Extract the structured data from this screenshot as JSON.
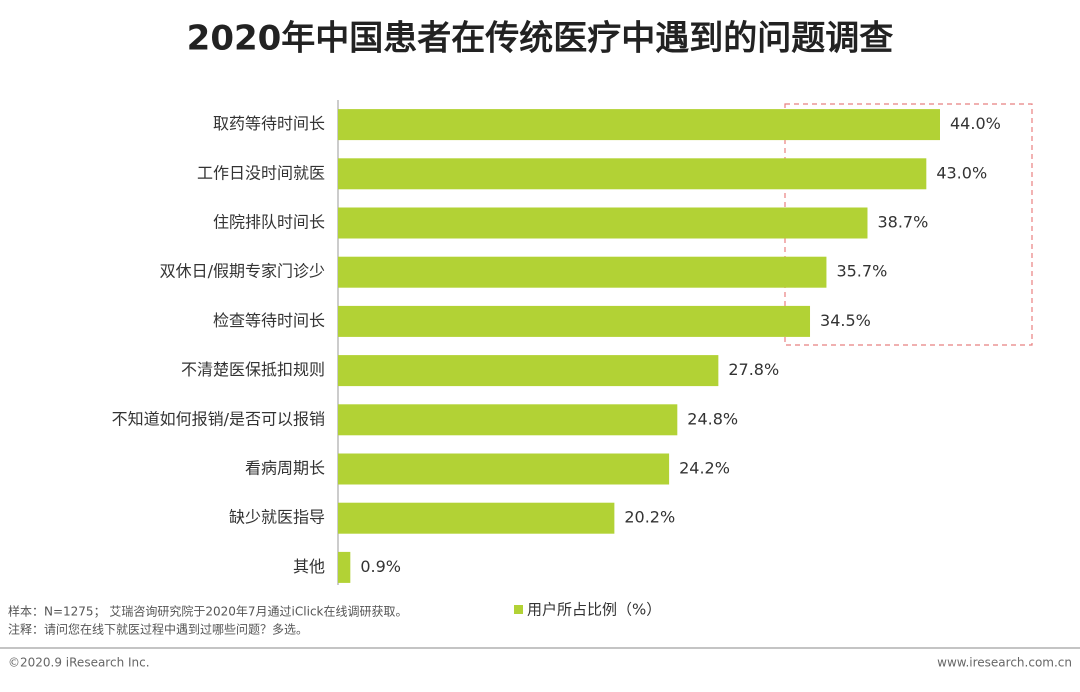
{
  "chart_data": {
    "type": "bar",
    "title": "2020年中国患者在传统医疗中遇到的问题调查",
    "categories": [
      "取药等待时间长",
      "工作日没时间就医",
      "住院排队时间长",
      "双休日/假期专家门诊少",
      "检查等待时间长",
      "不清楚医保抵扣规则",
      "不知道如何报销/是否可以报销",
      "看病周期长",
      "缺少就医指导",
      "其他"
    ],
    "series": [
      {
        "name": "用户所占比例（%）",
        "color": "#b2d235",
        "values": [
          44.0,
          43.0,
          38.7,
          35.7,
          34.5,
          27.8,
          24.8,
          24.2,
          20.2,
          0.9
        ],
        "value_labels": [
          "44.0%",
          "43.0%",
          "38.7%",
          "35.7%",
          "34.5%",
          "27.8%",
          "24.8%",
          "24.2%",
          "20.2%",
          "0.9%"
        ]
      }
    ]
  },
  "notes": [
    "样本：N=1275； 艾瑞咨询研究院于2020年7月通过iClick在线调研获取。",
    "注释：请问您在线下就医过程中遇到过哪些问题？多选。"
  ],
  "footer": {
    "copyright": "©2020.9 iResearch Inc.",
    "website": "www.iresearch.com.cn"
  }
}
